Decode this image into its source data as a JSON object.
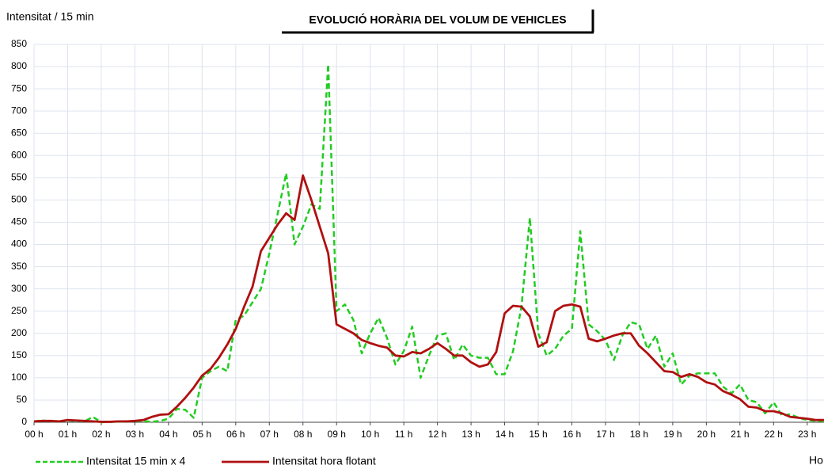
{
  "chart_data": {
    "type": "line",
    "title": "EVOLUCIÓ HORÀRIA DEL VOLUM  DE VEHICLES",
    "y_label": "Intensitat / 15 min",
    "x_label": "Ho",
    "xlim": [
      0,
      23.5
    ],
    "ylim": [
      0,
      850
    ],
    "yticks": [
      0,
      50,
      100,
      150,
      200,
      250,
      300,
      350,
      400,
      450,
      500,
      550,
      600,
      650,
      700,
      750,
      800,
      850
    ],
    "xticks": [
      {
        "value": 0,
        "label": "00 h"
      },
      {
        "value": 1,
        "label": "01 h"
      },
      {
        "value": 2,
        "label": "02 h"
      },
      {
        "value": 3,
        "label": "03 h"
      },
      {
        "value": 4,
        "label": "04 h"
      },
      {
        "value": 5,
        "label": "05 h"
      },
      {
        "value": 6,
        "label": "06 h"
      },
      {
        "value": 7,
        "label": "07 h"
      },
      {
        "value": 8,
        "label": "08 h"
      },
      {
        "value": 9,
        "label": "09 h"
      },
      {
        "value": 10,
        "label": "10 h"
      },
      {
        "value": 11,
        "label": "11 h"
      },
      {
        "value": 12,
        "label": "12 h"
      },
      {
        "value": 13,
        "label": "13 h"
      },
      {
        "value": 14,
        "label": "14 h"
      },
      {
        "value": 15,
        "label": "15 h"
      },
      {
        "value": 16,
        "label": "16 h"
      },
      {
        "value": 17,
        "label": "17 h"
      },
      {
        "value": 18,
        "label": "18 h"
      },
      {
        "value": 19,
        "label": "19 h"
      },
      {
        "value": 20,
        "label": "20 h"
      },
      {
        "value": 21,
        "label": "21 h"
      },
      {
        "value": 22,
        "label": "22 h"
      },
      {
        "value": 23,
        "label": "23 h"
      }
    ],
    "grid": true,
    "x": [
      0,
      0.25,
      0.5,
      0.75,
      1,
      1.25,
      1.5,
      1.75,
      2,
      2.25,
      2.5,
      2.75,
      3,
      3.25,
      3.5,
      3.75,
      4,
      4.25,
      4.5,
      4.75,
      5,
      5.25,
      5.5,
      5.75,
      6,
      6.25,
      6.5,
      6.75,
      7,
      7.25,
      7.5,
      7.75,
      8,
      8.25,
      8.5,
      8.75,
      9,
      9.25,
      9.5,
      9.75,
      10,
      10.25,
      10.5,
      10.75,
      11,
      11.25,
      11.5,
      11.75,
      12,
      12.25,
      12.5,
      12.75,
      13,
      13.25,
      13.5,
      13.75,
      14,
      14.25,
      14.5,
      14.75,
      15,
      15.25,
      15.5,
      15.75,
      16,
      16.25,
      16.5,
      16.75,
      17,
      17.25,
      17.5,
      17.75,
      18,
      18.25,
      18.5,
      18.75,
      19,
      19.25,
      19.5,
      19.75,
      20,
      20.25,
      20.5,
      20.75,
      21,
      21.25,
      21.5,
      21.75,
      22,
      22.25,
      22.5,
      22.75,
      23,
      23.25,
      23.5
    ],
    "series": [
      {
        "name": "Intensitat 15 min x  4",
        "color": "#22cc22",
        "dashed": true,
        "values": [
          2,
          4,
          2,
          2,
          4,
          3,
          2,
          12,
          0,
          1,
          1,
          2,
          2,
          3,
          1,
          3,
          8,
          30,
          28,
          10,
          100,
          115,
          125,
          115,
          230,
          240,
          270,
          300,
          380,
          470,
          560,
          400,
          440,
          490,
          480,
          805,
          250,
          265,
          230,
          155,
          200,
          235,
          190,
          130,
          160,
          215,
          100,
          150,
          195,
          200,
          140,
          175,
          150,
          145,
          145,
          108,
          108,
          160,
          260,
          460,
          200,
          150,
          165,
          195,
          210,
          430,
          220,
          205,
          185,
          140,
          195,
          225,
          220,
          165,
          195,
          125,
          155,
          85,
          105,
          110,
          110,
          110,
          80,
          65,
          85,
          50,
          45,
          20,
          45,
          15,
          18,
          10,
          5,
          3,
          2
        ]
      },
      {
        "name": "Intensitat hora flotant",
        "color": "#b01010",
        "dashed": false,
        "values": [
          2,
          3,
          3,
          2,
          5,
          4,
          3,
          2,
          1,
          1,
          2,
          2,
          3,
          5,
          12,
          17,
          18,
          35,
          55,
          78,
          105,
          120,
          145,
          175,
          210,
          260,
          305,
          385,
          415,
          445,
          470,
          455,
          555,
          500,
          440,
          380,
          220,
          210,
          200,
          185,
          178,
          172,
          168,
          150,
          148,
          158,
          155,
          165,
          178,
          165,
          150,
          150,
          135,
          125,
          130,
          158,
          245,
          262,
          260,
          238,
          170,
          180,
          250,
          262,
          265,
          260,
          188,
          182,
          188,
          195,
          200,
          200,
          172,
          155,
          135,
          115,
          113,
          102,
          108,
          102,
          90,
          85,
          70,
          62,
          52,
          35,
          33,
          25,
          25,
          20,
          12,
          10,
          8,
          5,
          5
        ]
      }
    ]
  }
}
